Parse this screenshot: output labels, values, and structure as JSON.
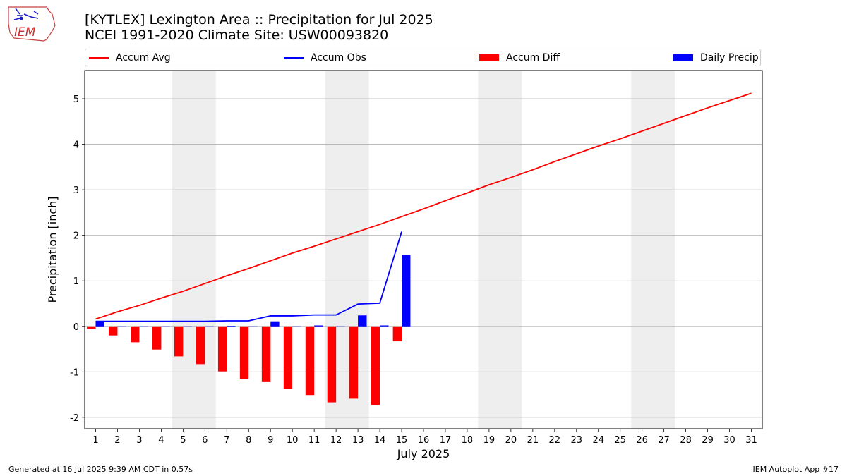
{
  "logo": {
    "text": "IEM"
  },
  "header": {
    "title_line1": "[KYTLEX] Lexington Area :: Precipitation for Jul 2025",
    "title_line2": "NCEI 1991-2020 Climate Site: USW00093820"
  },
  "legend": {
    "accum_avg": "Accum Avg",
    "accum_obs": "Accum Obs",
    "accum_diff": "Accum Diff",
    "daily_precip": "Daily Precip"
  },
  "footer": {
    "left": "Generated at 16 Jul 2025 9:39 AM CDT in 0.57s",
    "right": "IEM Autoplot App #17"
  },
  "colors": {
    "accum_avg": "#ff0000",
    "accum_obs": "#0000ff",
    "accum_diff": "#ff0000",
    "daily_precip": "#0000ff",
    "weekend_shade": "#eeeeee",
    "grid": "#b0b0b0"
  },
  "chart_data": {
    "type": "bar",
    "xlabel": "July 2025",
    "ylabel": "Precipitation [inch]",
    "xlim": [
      0.5,
      31.5
    ],
    "ylim": [
      -2.25,
      5.62
    ],
    "x_ticks": [
      1,
      2,
      3,
      4,
      5,
      6,
      7,
      8,
      9,
      10,
      11,
      12,
      13,
      14,
      15,
      16,
      17,
      18,
      19,
      20,
      21,
      22,
      23,
      24,
      25,
      26,
      27,
      28,
      29,
      30,
      31
    ],
    "y_ticks": [
      -2,
      -1,
      0,
      1,
      2,
      3,
      4,
      5
    ],
    "grid": "horizontal",
    "legend_position": "top",
    "weekend_shading": [
      [
        4.5,
        6.5
      ],
      [
        11.5,
        13.5
      ],
      [
        18.5,
        20.5
      ],
      [
        25.5,
        27.5
      ]
    ],
    "days": [
      1,
      2,
      3,
      4,
      5,
      6,
      7,
      8,
      9,
      10,
      11,
      12,
      13,
      14,
      15,
      16,
      17,
      18,
      19,
      20,
      21,
      22,
      23,
      24,
      25,
      26,
      27,
      28,
      29,
      30,
      31
    ],
    "series": [
      {
        "name": "Accum Avg",
        "kind": "line",
        "values": [
          0.16,
          0.32,
          0.46,
          0.62,
          0.77,
          0.94,
          1.11,
          1.27,
          1.44,
          1.61,
          1.76,
          1.92,
          2.08,
          2.24,
          2.41,
          2.58,
          2.76,
          2.93,
          3.11,
          3.27,
          3.44,
          3.62,
          3.79,
          3.96,
          4.12,
          4.29,
          4.46,
          4.63,
          4.8,
          4.96,
          5.12
        ]
      },
      {
        "name": "Accum Obs",
        "kind": "line",
        "values": [
          0.11,
          0.11,
          0.11,
          0.11,
          0.11,
          0.11,
          0.12,
          0.12,
          0.23,
          0.23,
          0.25,
          0.25,
          0.49,
          0.51,
          2.08
        ]
      },
      {
        "name": "Accum Diff",
        "kind": "bar",
        "values": [
          -0.05,
          -0.2,
          -0.35,
          -0.51,
          -0.66,
          -0.83,
          -0.99,
          -1.15,
          -1.21,
          -1.38,
          -1.51,
          -1.67,
          -1.59,
          -1.73,
          -0.33
        ]
      },
      {
        "name": "Daily Precip",
        "kind": "bar",
        "values": [
          0.11,
          0.0,
          0.0,
          0.0,
          0.0,
          0.0,
          0.01,
          0.0,
          0.11,
          0.0,
          0.02,
          0.0,
          0.24,
          0.02,
          1.57
        ]
      }
    ]
  }
}
